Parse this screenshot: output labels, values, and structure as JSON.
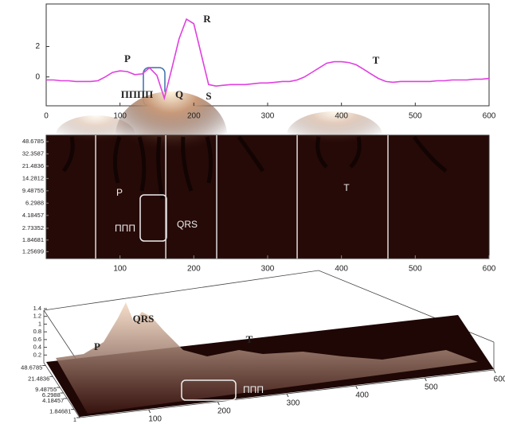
{
  "chart_data": [
    {
      "type": "line",
      "x": [
        0,
        10,
        20,
        30,
        40,
        50,
        60,
        70,
        80,
        90,
        100,
        110,
        120,
        130,
        140,
        150,
        160,
        170,
        180,
        190,
        200,
        210,
        220,
        230,
        240,
        250,
        260,
        270,
        280,
        290,
        300,
        310,
        320,
        330,
        340,
        350,
        360,
        370,
        380,
        390,
        400,
        410,
        420,
        430,
        440,
        450,
        460,
        470,
        480,
        490,
        500,
        510,
        520,
        530,
        540,
        550,
        560,
        570,
        580,
        590,
        600
      ],
      "values": [
        -0.2,
        -0.2,
        -0.25,
        -0.25,
        -0.3,
        -0.3,
        -0.3,
        -0.25,
        0,
        0.3,
        0.4,
        0.35,
        0.15,
        0.2,
        0.6,
        0.1,
        -1.4,
        0.5,
        2.5,
        3.8,
        3.5,
        1.5,
        -0.5,
        -0.6,
        -0.55,
        -0.5,
        -0.5,
        -0.5,
        -0.45,
        -0.4,
        -0.4,
        -0.35,
        -0.3,
        -0.3,
        -0.2,
        0,
        0.3,
        0.6,
        0.9,
        1.0,
        1.0,
        0.95,
        0.8,
        0.5,
        0.2,
        -0.1,
        -0.3,
        -0.35,
        -0.3,
        -0.3,
        -0.3,
        -0.3,
        -0.3,
        -0.25,
        -0.25,
        -0.2,
        -0.2,
        -0.2,
        -0.15,
        -0.15,
        -0.1
      ],
      "color": "#e040e0",
      "xlim": [
        0,
        600
      ],
      "xticks": [
        0,
        100,
        200,
        300,
        400,
        500,
        600
      ],
      "ylim": [
        -1.9,
        4.8
      ],
      "yticks": [
        0,
        2
      ],
      "annotations": [
        "P",
        "ΠΠΠΠ",
        "Q",
        "R",
        "S",
        "T"
      ]
    },
    {
      "type": "heatmap",
      "xlim": [
        0,
        600
      ],
      "xticks": [
        100,
        200,
        300,
        400,
        500,
        600
      ],
      "ylim": [
        1,
        60
      ],
      "yscale": "log",
      "yticks": [
        48.6785,
        32.3587,
        21.4836,
        14.2812,
        9.48755,
        6.2988,
        4.18457,
        2.73352,
        1.84681,
        1.25699
      ],
      "boundaries": [
        67,
        162,
        231,
        340,
        463
      ],
      "annotations": [
        "P",
        "ΠΠΠ",
        "QRS",
        "T"
      ]
    },
    {
      "type": "surface",
      "xlim": [
        0,
        600
      ],
      "xticks": [
        100,
        200,
        300,
        400,
        500,
        600
      ],
      "ylim": [
        1,
        60
      ],
      "yscale": "log",
      "yticks": [
        48.6785,
        21.4836,
        9.48755,
        6.2988,
        4.18457,
        1.84681,
        1
      ],
      "zlim": [
        0,
        1.4
      ],
      "zticks": [
        0.2,
        0.4,
        0.6,
        0.8,
        1,
        1.2,
        1.4
      ],
      "annotations": [
        "P",
        "QRS",
        "T",
        "ΠΠΠ"
      ]
    }
  ]
}
